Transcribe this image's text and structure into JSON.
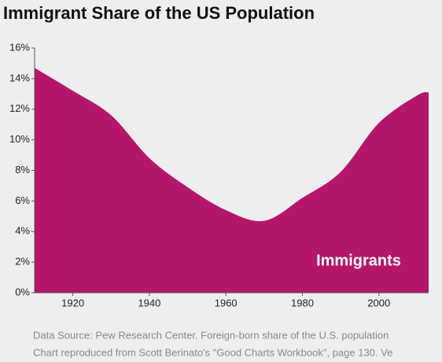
{
  "chart_data": {
    "type": "area",
    "title": "Immigrant Share of the US Population",
    "x": [
      1910,
      1920,
      1930,
      1940,
      1950,
      1960,
      1970,
      1980,
      1990,
      2000,
      2010,
      2013
    ],
    "series": [
      {
        "name": "Immigrants",
        "color": "#b5166a",
        "values": [
          14.7,
          13.2,
          11.6,
          8.8,
          6.9,
          5.4,
          4.7,
          6.2,
          7.9,
          11.1,
          12.9,
          13.1
        ]
      }
    ],
    "xlim": [
      1910,
      2013
    ],
    "xticks": [
      1920,
      1940,
      1960,
      1980,
      2000
    ],
    "ylim": [
      0,
      16
    ],
    "yticks": [
      {
        "value": 0,
        "label": "0%"
      },
      {
        "value": 2,
        "label": "2%"
      },
      {
        "value": 4,
        "label": "4%"
      },
      {
        "value": 6,
        "label": "6%"
      },
      {
        "value": 8,
        "label": "8%"
      },
      {
        "value": 10,
        "label": "10%"
      },
      {
        "value": 12,
        "label": "12%"
      },
      {
        "value": 14,
        "label": "14%"
      },
      {
        "value": 16,
        "label": "16%"
      }
    ],
    "grid": false,
    "notes": [
      "Data Source: Pew Research Center. Foreign-born share of the U.S. population",
      "Chart reproduced from Scott Berinato's \"Good Charts Workbook\", page 130. Ve"
    ]
  }
}
